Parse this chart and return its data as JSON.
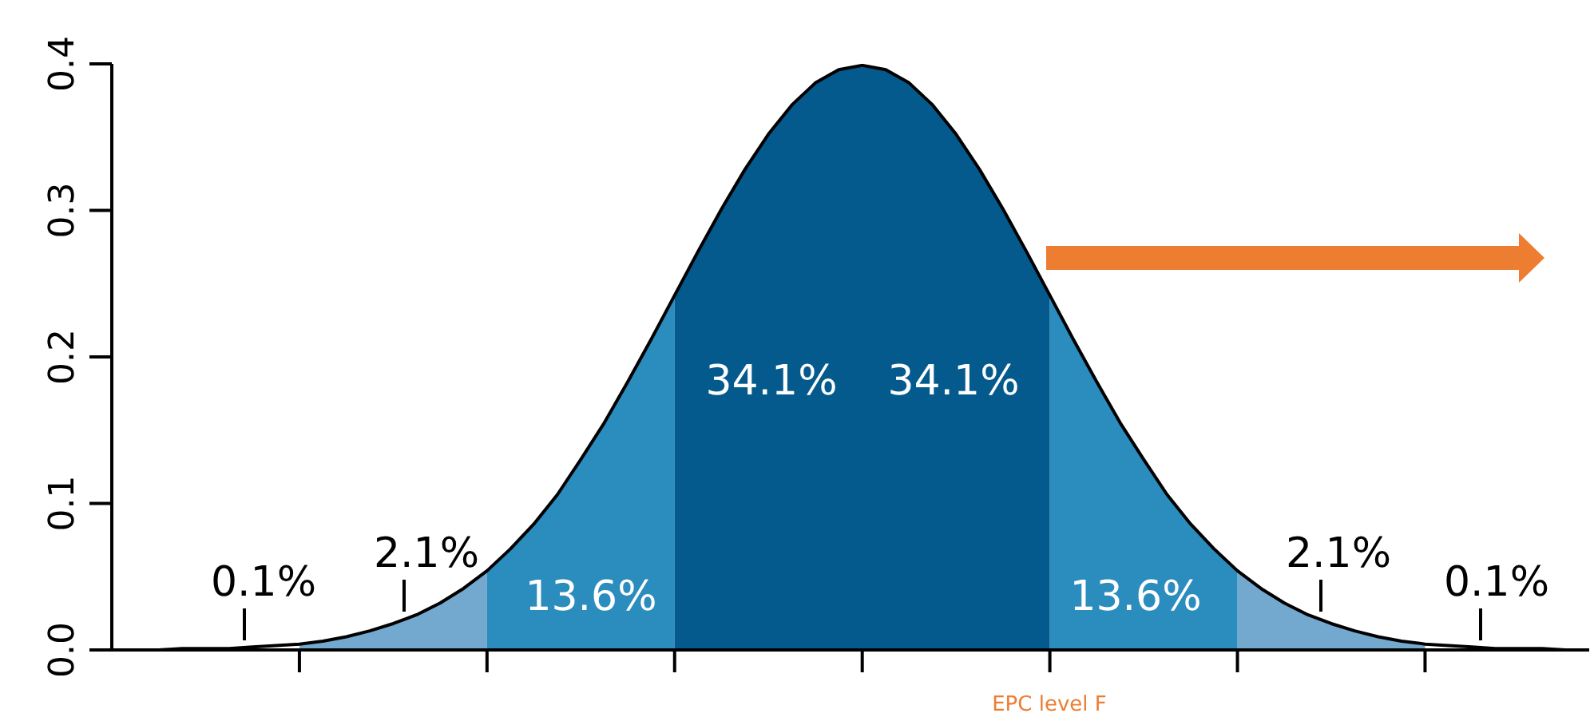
{
  "chart_data": {
    "type": "area",
    "categories": [
      null,
      null,
      null,
      null,
      null,
      null,
      null,
      null,
      null,
      null,
      null,
      null,
      null,
      null,
      null,
      null,
      null,
      null,
      null,
      null,
      null,
      null,
      null,
      null,
      null,
      null,
      null,
      null,
      null,
      null,
      null,
      null,
      null,
      null,
      null,
      null,
      null,
      null,
      null,
      null,
      null,
      null,
      null,
      null,
      null,
      null,
      null,
      null,
      null,
      null,
      null,
      null,
      null,
      null,
      null,
      null,
      null,
      null,
      null,
      null,
      null,
      null,
      null,
      null
    ],
    "ylim": [
      0,
      0.4
    ],
    "yticks": [
      {
        "value": 0,
        "label": "0.0"
      },
      0.1,
      0.2,
      0.3,
      0.4
    ],
    "series": [
      {
        "color": "#74a9cf",
        "values": [
          null,
          null,
          null,
          null,
          null,
          null,
          null,
          null,
          0.004,
          0.006,
          0.009,
          0.013,
          0.018,
          0.024,
          0.032,
          0.042,
          0.054,
          null,
          null,
          null,
          null,
          null,
          null,
          null,
          null,
          null,
          null,
          null,
          null,
          null,
          null,
          null,
          null,
          null,
          null,
          null,
          null,
          null,
          null,
          null,
          null,
          null,
          null,
          null,
          null,
          null,
          null,
          null,
          0.054,
          0.042,
          0.032,
          0.024,
          0.018,
          0.013,
          0.009,
          0.006,
          0.004,
          null,
          null,
          null,
          null,
          null,
          null,
          null
        ]
      },
      {
        "color": "#2b8cbe",
        "values": [
          null,
          null,
          null,
          null,
          null,
          null,
          null,
          null,
          null,
          null,
          null,
          null,
          null,
          null,
          null,
          null,
          0.054,
          0.069,
          0.086,
          0.106,
          0.13,
          0.155,
          0.183,
          0.212,
          0.242,
          null,
          null,
          null,
          null,
          null,
          null,
          null,
          null,
          null,
          null,
          null,
          null,
          null,
          null,
          null,
          0.242,
          0.212,
          0.183,
          0.155,
          0.13,
          0.106,
          0.086,
          0.069,
          0.054,
          null,
          null,
          null,
          null,
          null,
          null,
          null,
          null,
          null,
          null,
          null,
          null,
          null,
          null,
          null
        ]
      },
      {
        "color": "#045a8d",
        "values": [
          null,
          null,
          null,
          null,
          null,
          null,
          null,
          null,
          null,
          null,
          null,
          null,
          null,
          null,
          null,
          null,
          null,
          null,
          null,
          null,
          null,
          null,
          null,
          null,
          0.242,
          0.272,
          0.301,
          0.328,
          0.352,
          0.372,
          0.387,
          0.396,
          0.399,
          0.396,
          0.387,
          0.372,
          0.352,
          0.328,
          0.301,
          0.272,
          0.242,
          null,
          null,
          null,
          null,
          null,
          null,
          null,
          null,
          null,
          null,
          null,
          null,
          null,
          null,
          null,
          null,
          null,
          null,
          null,
          null,
          null,
          null,
          null
        ]
      },
      {
        "type": "line",
        "color": "#000000",
        "values": [
          0,
          0,
          0,
          0.001,
          0.001,
          0.001,
          0.002,
          0.003,
          0.004,
          0.006,
          0.009,
          0.013,
          0.018,
          0.024,
          0.032,
          0.042,
          0.054,
          0.069,
          0.086,
          0.106,
          0.13,
          0.155,
          0.183,
          0.212,
          0.242,
          0.272,
          0.301,
          0.328,
          0.352,
          0.372,
          0.387,
          0.396,
          0.399,
          0.396,
          0.387,
          0.372,
          0.352,
          0.328,
          0.301,
          0.272,
          0.242,
          0.212,
          0.183,
          0.155,
          0.13,
          0.106,
          0.086,
          0.069,
          0.054,
          0.042,
          0.032,
          0.024,
          0.018,
          0.013,
          0.009,
          0.006,
          0.004,
          0.003,
          0.002,
          0.001,
          0.001,
          0.001,
          0,
          0
        ]
      }
    ],
    "annotations": [
      "0.1%",
      "2.1%",
      "13.6%",
      "34.1%",
      "34.1%",
      "13.6%",
      "2.1%",
      "0.1%",
      "EPC level F"
    ]
  }
}
